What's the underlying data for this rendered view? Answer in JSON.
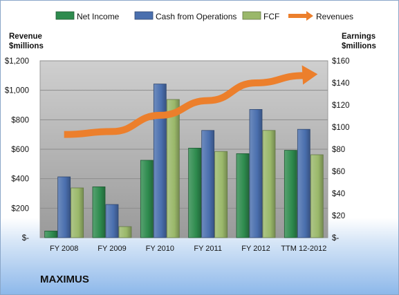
{
  "company_name": "MAXIMUS",
  "colors": {
    "net_income": "#2e8b4e",
    "cash_from_operations": "#4a6fae",
    "fcf": "#9ab86a",
    "revenues": "#ec7f2c",
    "plot_bg_top": "#cfcfcf",
    "plot_bg_bottom": "#9a9a9a"
  },
  "chart_data": {
    "type": "bar",
    "categories": [
      "FY 2008",
      "FY 2009",
      "FY 2010",
      "FY 2011",
      "FY 2012",
      "TTM 12-2012"
    ],
    "left_axis": {
      "label_line1": "Revenue",
      "label_line2": "$millions",
      "ylim": [
        0,
        1200
      ],
      "ticks": [
        0,
        200,
        400,
        600,
        800,
        1000,
        1200
      ],
      "tick_labels": [
        "$-",
        "$200",
        "$400",
        "$600",
        "$800",
        "$1,000",
        "$1,200"
      ]
    },
    "right_axis": {
      "label_line1": "Earnings",
      "label_line2": "$millions",
      "ylim": [
        0,
        160
      ],
      "ticks": [
        0,
        20,
        40,
        60,
        80,
        100,
        120,
        140,
        160
      ],
      "tick_labels": [
        "$-",
        "$20",
        "$40",
        "$60",
        "$80",
        "$100",
        "$120",
        "$140",
        "$160"
      ]
    },
    "series": [
      {
        "name": "Net Income",
        "type": "bar",
        "axis": "right",
        "values": [
          6,
          46,
          70,
          81,
          76,
          79
        ]
      },
      {
        "name": "Cash from Operations",
        "type": "bar",
        "axis": "right",
        "values": [
          55,
          30,
          139,
          97,
          116,
          98
        ]
      },
      {
        "name": "FCF",
        "type": "bar",
        "axis": "right",
        "values": [
          45,
          10,
          125,
          78,
          97,
          75
        ]
      },
      {
        "name": "Revenues",
        "type": "line",
        "axis": "left",
        "values": [
          700,
          720,
          830,
          930,
          1050,
          1100
        ]
      }
    ],
    "grid": true,
    "legend_position": "top"
  }
}
